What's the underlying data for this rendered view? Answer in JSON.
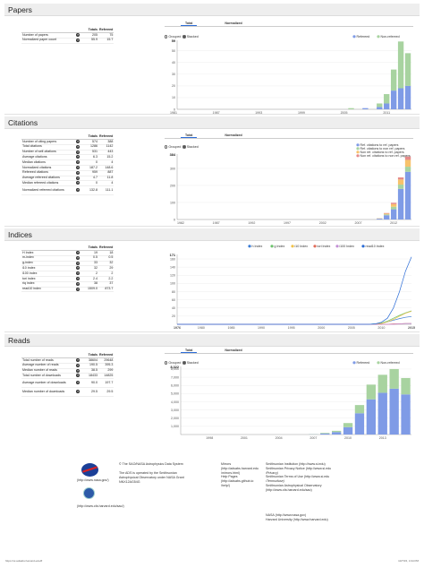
{
  "colors": {
    "refereed": "#7f9be6",
    "non_refereed": "#a8d3a0",
    "total": "#2a6bd6",
    "header_bg": "#eeeeee"
  },
  "help_icon": "question-icon",
  "sections": {
    "papers": {
      "title": "Papers",
      "col_totals": "Totals",
      "col_refereed": "Refereed",
      "rows": [
        {
          "label": "Number of papers",
          "total": "205",
          "refereed": "75"
        },
        {
          "label": "Normalized paper count",
          "total": "55.9",
          "refereed": "15.7"
        }
      ]
    },
    "citations": {
      "title": "Citations",
      "col_totals": "Totals",
      "col_refereed": "Refereed",
      "rows": [
        {
          "label": "Number of citing papers",
          "total": "574",
          "refereed": "388"
        },
        {
          "label": "Total citations",
          "total": "1286",
          "refereed": "1142"
        },
        {
          "label": "Number of self-citations",
          "total": "531",
          "refereed": "443"
        },
        {
          "label": "Average citations",
          "total": "6.3",
          "refereed": "15.2"
        },
        {
          "label": "Median citations",
          "total": "0",
          "refereed": "4"
        },
        {
          "label": "Normalized citations",
          "total": "187.2",
          "refereed": "148.6"
        },
        {
          "label": "Refereed citations",
          "total": "959",
          "refereed": "887"
        },
        {
          "label": "Average refereed citations",
          "total": "4.7",
          "refereed": "11.8"
        },
        {
          "label": "Median refereed citations",
          "total": "0",
          "refereed": "4"
        },
        {
          "label": "Normalized refereed citations",
          "total": "132.8",
          "refereed": "111.1"
        }
      ]
    },
    "indices": {
      "title": "Indices",
      "col_totals": "Totals",
      "col_refereed": "Refereed",
      "rows": [
        {
          "label": "H Index",
          "total": "19",
          "refereed": "18"
        },
        {
          "label": "m-index",
          "total": "0.5",
          "refereed": "0.5"
        },
        {
          "label": "g-index",
          "total": "33",
          "refereed": "32"
        },
        {
          "label": "i10 index",
          "total": "32",
          "refereed": "29"
        },
        {
          "label": "i100 index",
          "total": "2",
          "refereed": "2"
        },
        {
          "label": "tori index",
          "total": "2.4",
          "refereed": "2.2"
        },
        {
          "label": "riq index",
          "total": "38",
          "refereed": "37"
        },
        {
          "label": "read10 index",
          "total": "1509.0",
          "refereed": "873.7"
        }
      ]
    },
    "reads": {
      "title": "Reads",
      "col_totals": "Totals",
      "col_refereed": "Refereed",
      "rows": [
        {
          "label": "Total number of reads",
          "total": "38604",
          "refereed": "29648"
        },
        {
          "label": "Average number of reads",
          "total": "190.5",
          "refereed": "395.3"
        },
        {
          "label": "Median number of reads",
          "total": "38.5",
          "refereed": "299"
        },
        {
          "label": "Total number of downloads",
          "total": "18433",
          "refereed": "14825"
        },
        {
          "label": "Average number of downloads",
          "total": "90.0",
          "refereed": "197.7"
        },
        {
          "label": "Median number of downloads",
          "total": "29.5",
          "refereed": "29.5"
        }
      ]
    }
  },
  "chart_tabs": {
    "total": "Total",
    "normalized": "Normalized"
  },
  "chart_controls": {
    "grouped": "Grouped",
    "stacked": "Stacked"
  },
  "chart_data": [
    {
      "type": "bar",
      "id": "papers",
      "stacked": true,
      "x": [
        1982,
        1983,
        1984,
        1985,
        1986,
        1987,
        1988,
        1989,
        1990,
        1991,
        1992,
        1993,
        1994,
        1995,
        1996,
        1997,
        1998,
        1999,
        2000,
        2001,
        2002,
        2003,
        2004,
        2005,
        2006,
        2007,
        2008,
        2009,
        2010,
        2011,
        2012,
        2013,
        2014
      ],
      "xticks": [
        "1981",
        "1987",
        "1993",
        "1999",
        "2005",
        "2011"
      ],
      "yticks": [
        "0",
        "10",
        "20",
        "30",
        "40",
        "50"
      ],
      "ymax_label": "59",
      "ylim": [
        0,
        59
      ],
      "legend_position": "top-right",
      "series": [
        {
          "name": "Refereed",
          "values": [
            0,
            0,
            0,
            0,
            0,
            0,
            0,
            0,
            0,
            0,
            0,
            0,
            0,
            0,
            0,
            0,
            0,
            0,
            0,
            0,
            0,
            0,
            0,
            0,
            0,
            0,
            1,
            0,
            2,
            5,
            16,
            18,
            20
          ]
        },
        {
          "name": "Non-refereed",
          "values": [
            0,
            0,
            0,
            0,
            0,
            0,
            0,
            0,
            0,
            0,
            0,
            0,
            0,
            0,
            0,
            0,
            0,
            0,
            0,
            0,
            0,
            0,
            0,
            0,
            1,
            0,
            0,
            0,
            3,
            8,
            18,
            40,
            28
          ]
        }
      ]
    },
    {
      "type": "bar",
      "id": "citations",
      "stacked": true,
      "x": [
        1982,
        1983,
        1984,
        1985,
        1986,
        1987,
        1988,
        1989,
        1990,
        1991,
        1992,
        1993,
        1994,
        1995,
        1996,
        1997,
        1998,
        1999,
        2000,
        2001,
        2002,
        2003,
        2004,
        2005,
        2006,
        2007,
        2008,
        2009,
        2010,
        2011,
        2012,
        2013,
        2014
      ],
      "xticks": [
        "1982",
        "1987",
        "1992",
        "1997",
        "2002",
        "2007",
        "2012"
      ],
      "yticks": [
        "0",
        "100",
        "200",
        "300"
      ],
      "ymax_label": "384",
      "ylim": [
        0,
        384
      ],
      "legend_position": "top-right",
      "series": [
        {
          "name": "Ref. citations to ref. papers",
          "values": [
            0,
            0,
            0,
            0,
            0,
            0,
            0,
            0,
            0,
            0,
            0,
            0,
            0,
            0,
            0,
            0,
            0,
            0,
            0,
            0,
            0,
            0,
            0,
            0,
            0,
            0,
            0,
            0,
            5,
            25,
            60,
            180,
            280
          ]
        },
        {
          "name": "Ref. citations to non ref. papers",
          "values": [
            0,
            0,
            0,
            0,
            0,
            0,
            0,
            0,
            0,
            0,
            0,
            0,
            0,
            0,
            0,
            0,
            0,
            0,
            0,
            0,
            0,
            0,
            0,
            0,
            0,
            0,
            0,
            0,
            0,
            5,
            15,
            25,
            30
          ]
        },
        {
          "name": "Non ref. citations to ref. papers",
          "values": [
            0,
            0,
            0,
            0,
            0,
            0,
            0,
            0,
            0,
            0,
            0,
            0,
            0,
            0,
            0,
            0,
            0,
            0,
            0,
            0,
            0,
            0,
            0,
            0,
            0,
            0,
            0,
            0,
            2,
            5,
            15,
            30,
            40
          ]
        },
        {
          "name": "Non ref. citations to non ref. papers",
          "values": [
            0,
            0,
            0,
            0,
            0,
            0,
            0,
            0,
            0,
            0,
            0,
            0,
            0,
            0,
            0,
            0,
            0,
            0,
            0,
            0,
            0,
            0,
            0,
            0,
            0,
            0,
            0,
            0,
            0,
            3,
            8,
            12,
            20
          ]
        }
      ]
    },
    {
      "type": "line",
      "id": "indices",
      "x": [
        1976,
        1978,
        1980,
        1982,
        1984,
        1986,
        1988,
        1990,
        1992,
        1994,
        1996,
        1998,
        2000,
        2002,
        2004,
        2006,
        2008,
        2009,
        2010,
        2011,
        2012,
        2013,
        2014,
        2015
      ],
      "xticks": [
        "1976",
        "1980",
        "1985",
        "1990",
        "1995",
        "2000",
        "2005",
        "2010",
        "2015"
      ],
      "yticks": [
        "20",
        "40",
        "60",
        "80",
        "100",
        "120",
        "140",
        "160"
      ],
      "ymax_label": "171",
      "ylim": [
        0,
        171
      ],
      "legend_position": "top",
      "series": [
        {
          "name": "h Index",
          "values": [
            0,
            0,
            0,
            0,
            0,
            0,
            0,
            0,
            0,
            0,
            0,
            0,
            0,
            0,
            0,
            0,
            0,
            1,
            3,
            6,
            10,
            14,
            17,
            19
          ]
        },
        {
          "name": "g Index",
          "values": [
            0,
            0,
            0,
            0,
            0,
            0,
            0,
            0,
            0,
            0,
            0,
            0,
            0,
            0,
            0,
            0,
            0,
            1,
            3,
            8,
            15,
            22,
            28,
            33
          ]
        },
        {
          "name": "i10 Index",
          "values": [
            0,
            0,
            0,
            0,
            0,
            0,
            0,
            0,
            0,
            0,
            0,
            0,
            0,
            0,
            0,
            0,
            0,
            0,
            2,
            6,
            12,
            20,
            27,
            32
          ]
        },
        {
          "name": "tori Index",
          "values": [
            0,
            0,
            0,
            0,
            0,
            0,
            0,
            0,
            0,
            0,
            0,
            0,
            0,
            0,
            0,
            0,
            0,
            0,
            0,
            0,
            1,
            1,
            2,
            2
          ]
        },
        {
          "name": "i100 Index",
          "values": [
            0,
            0,
            0,
            0,
            0,
            0,
            0,
            0,
            0,
            0,
            0,
            0,
            0,
            0,
            0,
            0,
            0,
            0,
            0,
            0,
            0,
            1,
            2,
            2
          ]
        },
        {
          "name": "read10 Index",
          "values": [
            0,
            0,
            0,
            0,
            0,
            0,
            0,
            0,
            0,
            0,
            0,
            0,
            0,
            0,
            0,
            0,
            0,
            1,
            5,
            15,
            40,
            80,
            130,
            165
          ]
        }
      ]
    },
    {
      "type": "bar",
      "id": "reads",
      "stacked": true,
      "x": [
        1996,
        1997,
        1998,
        1999,
        2000,
        2001,
        2002,
        2003,
        2004,
        2005,
        2006,
        2007,
        2008,
        2009,
        2010,
        2011,
        2012,
        2013,
        2014,
        2015
      ],
      "xticks": [
        "1998",
        "2001",
        "2004",
        "2007",
        "2010",
        "2013"
      ],
      "yticks": [
        "1,000",
        "2,000",
        "3,000",
        "4,000",
        "5,000",
        "6,000",
        "7,000",
        "8,000"
      ],
      "ymax_label": "8,322",
      "ylim": [
        0,
        8322
      ],
      "legend_position": "top-right",
      "series": [
        {
          "name": "Refereed",
          "values": [
            0,
            0,
            0,
            0,
            0,
            0,
            0,
            0,
            0,
            0,
            0,
            20,
            120,
            300,
            900,
            2600,
            4300,
            5100,
            5600,
            4900
          ]
        },
        {
          "name": "Non-refereed",
          "values": [
            0,
            0,
            0,
            0,
            0,
            0,
            0,
            0,
            0,
            0,
            0,
            20,
            80,
            150,
            500,
            1000,
            1800,
            2200,
            2400,
            2000
          ]
        }
      ]
    }
  ],
  "footer": {
    "nasa_url": "(http://www.nasa.gov/)",
    "cfa_url": "(http://www.cfa.harvard.edu/sao/)",
    "copyright": "© The SAO/NASA Astrophysics Data System",
    "operated": "The ADS is operated by the Smithsonian Astrophysical Observatory under NASA Grant NNX12AG54G",
    "col1": [
      "Mirrors",
      "(http://adsabs.harvard.edu",
      "/mirrors.html)",
      "Help Pages",
      "(http://adsabs.github.io",
      "/help/)"
    ],
    "col2": [
      "Smithsonian Institution (http://www.si.edu)",
      "Smithsonian Privacy Notice (http://www.si.edu",
      "/Privacy)",
      "Smithsonian Terms of Use (http://www.si.edu",
      "/Termsofuse)",
      "Smithsonian Astrophysical Observatory",
      "(http://www.cfa.harvard.edu/sao)"
    ],
    "col3": [
      "NASA (http://www.nasa.gov)",
      "Harvard University (http://www.harvard.edu)"
    ]
  },
  "bottom": {
    "url": "https://ui.adsabs.harvard.edu/#",
    "date": "10/7/15, 4:34 PM"
  }
}
